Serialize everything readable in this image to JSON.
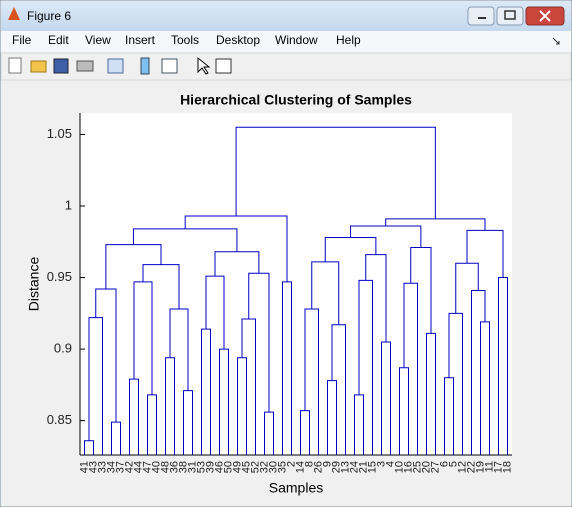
{
  "window": {
    "title": "Figure 6",
    "menu": [
      "File",
      "Edit",
      "View",
      "Insert",
      "Tools",
      "Desktop",
      "Window",
      "Help"
    ]
  },
  "chart_data": {
    "type": "dendrogram",
    "title": "Hierarchical Clustering of Samples",
    "x_label": "Samples",
    "y_label": "Distance",
    "color": "#0000c8",
    "ylim": [
      0.826,
      1.065
    ],
    "yticks": [
      0.85,
      0.9,
      0.95,
      1,
      1.05
    ],
    "tree": {
      "height": 1.055,
      "children": [
        {
          "height": 0.993,
          "children": [
            {
              "height": 0.984,
              "children": [
                {
                  "height": 0.973,
                  "children": [
                    {
                      "height": 0.942,
                      "children": [
                        {
                          "height": 0.922,
                          "children": [
                            {
                              "height": 0.836,
                              "children": [
                                "41",
                                "43"
                              ]
                            },
                            "33"
                          ]
                        },
                        {
                          "height": 0.849,
                          "children": [
                            "34",
                            "37"
                          ]
                        }
                      ]
                    },
                    {
                      "height": 0.959,
                      "children": [
                        {
                          "height": 0.947,
                          "children": [
                            {
                              "height": 0.879,
                              "children": [
                                "42",
                                "44"
                              ]
                            },
                            {
                              "height": 0.868,
                              "children": [
                                "47",
                                "40"
                              ]
                            }
                          ]
                        },
                        {
                          "height": 0.928,
                          "children": [
                            {
                              "height": 0.894,
                              "children": [
                                "48",
                                "36"
                              ]
                            },
                            {
                              "height": 0.871,
                              "children": [
                                "38",
                                "31"
                              ]
                            }
                          ]
                        }
                      ]
                    }
                  ]
                },
                {
                  "height": 0.968,
                  "children": [
                    {
                      "height": 0.951,
                      "children": [
                        {
                          "height": 0.914,
                          "children": [
                            "53",
                            "39"
                          ]
                        },
                        {
                          "height": 0.9,
                          "children": [
                            "46",
                            "50"
                          ]
                        }
                      ]
                    },
                    {
                      "height": 0.953,
                      "children": [
                        {
                          "height": 0.921,
                          "children": [
                            {
                              "height": 0.894,
                              "children": [
                                "49",
                                "45"
                              ]
                            },
                            "52"
                          ]
                        },
                        {
                          "height": 0.856,
                          "children": [
                            "32",
                            "30"
                          ]
                        }
                      ]
                    }
                  ]
                }
              ]
            },
            {
              "height": 0.947,
              "children": [
                "35",
                "2"
              ]
            }
          ]
        },
        {
          "height": 0.991,
          "children": [
            {
              "height": 0.986,
              "children": [
                {
                  "height": 0.978,
                  "children": [
                    {
                      "height": 0.961,
                      "children": [
                        {
                          "height": 0.928,
                          "children": [
                            {
                              "height": 0.857,
                              "children": [
                                "14",
                                "8"
                              ]
                            },
                            "26"
                          ]
                        },
                        {
                          "height": 0.917,
                          "children": [
                            {
                              "height": 0.878,
                              "children": [
                                "9",
                                "29"
                              ]
                            },
                            "13"
                          ]
                        }
                      ]
                    },
                    {
                      "height": 0.966,
                      "children": [
                        {
                          "height": 0.948,
                          "children": [
                            {
                              "height": 0.868,
                              "children": [
                                "24",
                                "21"
                              ]
                            },
                            "15"
                          ]
                        },
                        {
                          "height": 0.905,
                          "children": [
                            "3",
                            "4"
                          ]
                        }
                      ]
                    }
                  ]
                },
                {
                  "height": 0.971,
                  "children": [
                    {
                      "height": 0.946,
                      "children": [
                        {
                          "height": 0.887,
                          "children": [
                            "10",
                            "16"
                          ]
                        },
                        "25"
                      ]
                    },
                    {
                      "height": 0.911,
                      "children": [
                        "20",
                        "27"
                      ]
                    }
                  ]
                }
              ]
            },
            {
              "height": 0.983,
              "children": [
                {
                  "height": 0.96,
                  "children": [
                    {
                      "height": 0.925,
                      "children": [
                        {
                          "height": 0.88,
                          "children": [
                            "6",
                            "5"
                          ]
                        },
                        "12"
                      ]
                    },
                    {
                      "height": 0.941,
                      "children": [
                        "22",
                        {
                          "height": 0.919,
                          "children": [
                            "19",
                            "11"
                          ]
                        }
                      ]
                    }
                  ]
                },
                {
                  "height": 0.95,
                  "children": [
                    "17",
                    "18"
                  ]
                }
              ]
            }
          ]
        }
      ]
    }
  }
}
